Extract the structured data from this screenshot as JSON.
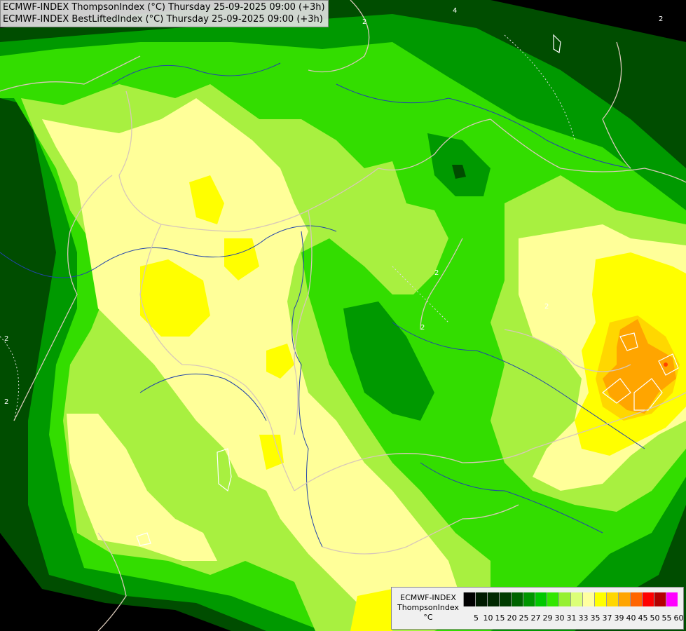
{
  "title": {
    "line1": "ECMWF-INDEX ThompsonIndex (°C) Thursday 25-09-2025 09:00 (+3h)",
    "line2": "ECMWF-INDEX BestLiftedIndex (°C) Thursday 25-09-2025 09:00 (+3h)"
  },
  "legend": {
    "model": "ECMWF-INDEX",
    "parameter": "ThompsonIndex",
    "unit": "°C",
    "ticks": [
      "5",
      "10",
      "15",
      "20",
      "25",
      "27",
      "29",
      "30",
      "31",
      "33",
      "35",
      "37",
      "39",
      "40",
      "45",
      "50",
      "55",
      "60"
    ],
    "colors": [
      "#000000",
      "#001a00",
      "#002800",
      "#003c00",
      "#006400",
      "#009600",
      "#00c800",
      "#32e600",
      "#96f032",
      "#dcff78",
      "#ffffa0",
      "#ffff00",
      "#ffd700",
      "#ffa500",
      "#ff6400",
      "#ff0000",
      "#b40000",
      "#ff00ff",
      "#c800ff",
      "#6400ff",
      "#0000ff"
    ]
  },
  "map_labels": {
    "contour_labels": [
      "2",
      "2",
      "2",
      "2",
      "2",
      "2",
      "4",
      "2"
    ]
  },
  "colors": {
    "dark_green": "#004d00",
    "medium_green": "#009900",
    "bright_green": "#33dd00",
    "lime": "#a8f040",
    "light_yellow": "#ffff99",
    "yellow": "#ffff00",
    "gold": "#ffd700",
    "orange": "#ffa500",
    "border_color": "#d8c8b8",
    "river_color": "#2244aa",
    "contour_color": "#ffffff"
  }
}
